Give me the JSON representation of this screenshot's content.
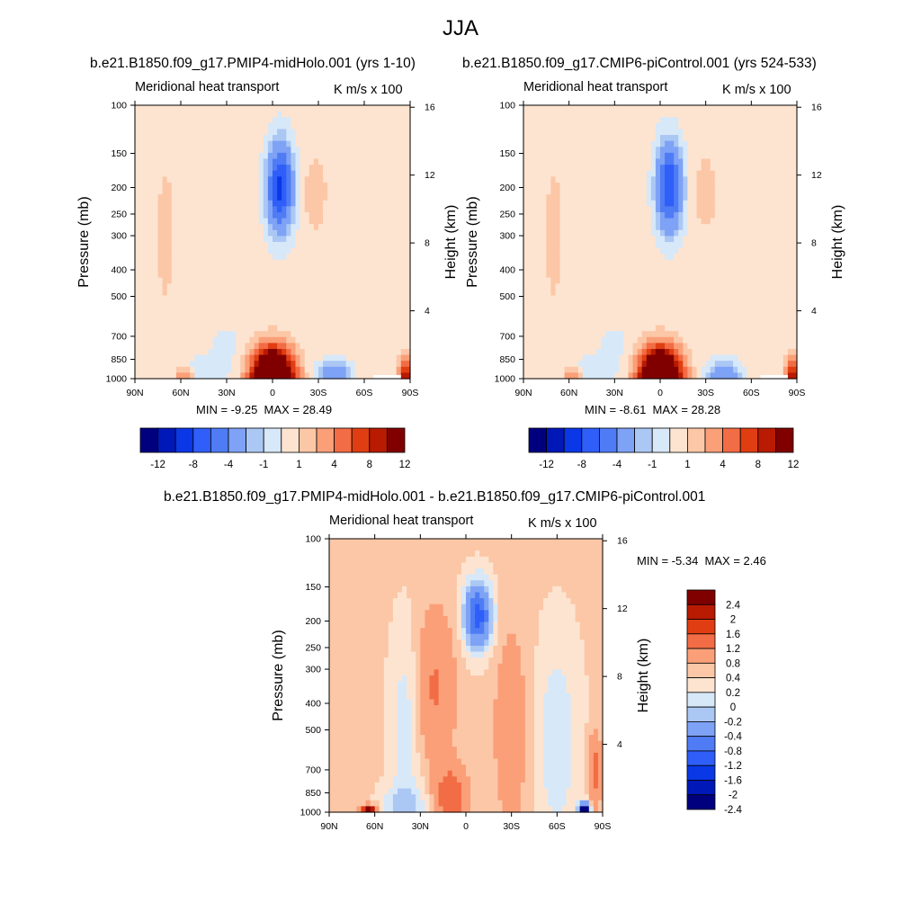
{
  "page": {
    "title": "JJA"
  },
  "panels": [
    {
      "case_title": "b.e21.B1850.f09_g17.PMIP4-midHolo.001 (yrs 1-10)",
      "left_label": "Meridional heat transport",
      "right_label": "K m/s x 100",
      "min_label": "MIN =",
      "min_value": "-9.25",
      "max_label": "MAX =",
      "max_value": "28.49"
    },
    {
      "case_title": "b.e21.B1850.f09_g17.CMIP6-piControl.001 (yrs 524-533)",
      "left_label": "Meridional heat transport",
      "right_label": "K m/s x 100",
      "min_label": "MIN =",
      "min_value": "-8.61",
      "max_label": "MAX =",
      "max_value": "28.28"
    },
    {
      "case_title": "b.e21.B1850.f09_g17.PMIP4-midHolo.001 - b.e21.B1850.f09_g17.CMIP6-piControl.001",
      "left_label": "Meridional heat transport",
      "right_label": "K m/s x 100",
      "min_label": "MIN =",
      "min_value": "-5.34",
      "max_label": "MAX =",
      "max_value": "2.46"
    }
  ],
  "chart_data": [
    {
      "type": "heatmap",
      "title": "Meridional heat transport",
      "units": "K m/s x 100",
      "xlabel": "",
      "ylabel": "Pressure (mb)",
      "y2label": "Height (km)",
      "x_ticks": [
        "90N",
        "60N",
        "30N",
        "0",
        "30S",
        "60S",
        "90S"
      ],
      "x_tick_values": [
        90,
        60,
        30,
        0,
        -30,
        -60,
        -90
      ],
      "y_ticks": [
        100,
        150,
        200,
        250,
        300,
        400,
        500,
        700,
        850,
        1000
      ],
      "y2_ticks": [
        16,
        12,
        8,
        4
      ],
      "y_scale": "log",
      "ylim": [
        1000,
        100
      ],
      "min": -9.25,
      "max": 28.49,
      "colorbar": {
        "orientation": "horizontal",
        "levels": [
          -12,
          -10,
          -8,
          -6,
          -4,
          -2,
          -1,
          0,
          1,
          2,
          4,
          6,
          8,
          10,
          12
        ],
        "labels": [
          "-12",
          "-8",
          "-4",
          "-1",
          "1",
          "4",
          "8",
          "12"
        ]
      },
      "features": [
        {
          "lat": 0,
          "p": 960,
          "value": 26,
          "desc": "strong positive near-surface maximum at equator"
        },
        {
          "lat": -5,
          "p": 200,
          "value": -9.25,
          "desc": "upper-level negative minimum"
        },
        {
          "lat": -25,
          "p": 200,
          "value": 1,
          "desc": "weak upper-level positive"
        },
        {
          "lat": -40,
          "p": 950,
          "value": -4,
          "desc": "near-surface negative southern subtropics"
        },
        {
          "lat": -85,
          "p": 900,
          "value": 8,
          "desc": "near-surface positive high southern latitudes"
        }
      ]
    },
    {
      "type": "heatmap",
      "title": "Meridional heat transport",
      "units": "K m/s x 100",
      "xlabel": "",
      "ylabel": "Pressure (mb)",
      "y2label": "Height (km)",
      "x_ticks": [
        "90N",
        "60N",
        "30N",
        "0",
        "30S",
        "60S",
        "90S"
      ],
      "x_tick_values": [
        90,
        60,
        30,
        0,
        -30,
        -60,
        -90
      ],
      "y_ticks": [
        100,
        150,
        200,
        250,
        300,
        400,
        500,
        700,
        850,
        1000
      ],
      "y2_ticks": [
        16,
        12,
        8,
        4
      ],
      "y_scale": "log",
      "ylim": [
        1000,
        100
      ],
      "min": -8.61,
      "max": 28.28,
      "colorbar": {
        "orientation": "horizontal",
        "levels": [
          -12,
          -10,
          -8,
          -6,
          -4,
          -2,
          -1,
          0,
          1,
          2,
          4,
          6,
          8,
          10,
          12
        ],
        "labels": [
          "-12",
          "-8",
          "-4",
          "-1",
          "1",
          "4",
          "8",
          "12"
        ]
      },
      "features": [
        {
          "lat": 0,
          "p": 960,
          "value": 26,
          "desc": "strong positive near-surface maximum at equator"
        },
        {
          "lat": -2,
          "p": 200,
          "value": -8.61,
          "desc": "upper-level negative minimum"
        },
        {
          "lat": -30,
          "p": 200,
          "value": 1,
          "desc": "weak upper-level positive"
        },
        {
          "lat": -45,
          "p": 950,
          "value": -4,
          "desc": "near-surface negative southern subtropics"
        },
        {
          "lat": -85,
          "p": 900,
          "value": 8,
          "desc": "near-surface positive high southern latitudes"
        }
      ]
    },
    {
      "type": "heatmap",
      "title": "Meridional heat transport",
      "units": "K m/s x 100",
      "xlabel": "",
      "ylabel": "Pressure (mb)",
      "y2label": "Height (km)",
      "x_ticks": [
        "90N",
        "60N",
        "30N",
        "0",
        "30S",
        "60S",
        "90S"
      ],
      "x_tick_values": [
        90,
        60,
        30,
        0,
        -30,
        -60,
        -90
      ],
      "y_ticks": [
        100,
        150,
        200,
        250,
        300,
        400,
        500,
        700,
        850,
        1000
      ],
      "y2_ticks": [
        16,
        12,
        8,
        4
      ],
      "y_scale": "log",
      "ylim": [
        1000,
        100
      ],
      "min": -5.34,
      "max": 2.46,
      "colorbar": {
        "orientation": "vertical",
        "levels": [
          -2.4,
          -2,
          -1.6,
          -1.2,
          -0.8,
          -0.4,
          -0.2,
          0,
          0.2,
          0.4,
          0.8,
          1.2,
          1.6,
          2,
          2.4
        ],
        "labels": [
          "2.4",
          "2",
          "1.6",
          "1.2",
          "0.8",
          "0.4",
          "0.2",
          "0",
          "-0.2",
          "-0.4",
          "-0.8",
          "-1.2",
          "-1.6",
          "-2",
          "-2.4"
        ]
      },
      "features": [
        {
          "lat": -5,
          "p": 180,
          "value": -1.4,
          "desc": "upper-level negative near equator"
        },
        {
          "lat": 65,
          "p": 990,
          "value": 2.46,
          "desc": "near-surface positive at 60N"
        },
        {
          "lat": 10,
          "p": 900,
          "value": 0.8,
          "desc": "lower-tropospheric positive near 10N"
        },
        {
          "lat": -75,
          "p": 975,
          "value": -5.34,
          "desc": "near-surface negative southern high latitudes"
        }
      ]
    }
  ],
  "colors": {
    "scale": [
      "#00007f",
      "#0018b8",
      "#0a38e6",
      "#2f5ef8",
      "#4f7cf5",
      "#7ea2f5",
      "#abc7f4",
      "#d7e8f8",
      "#fde4d0",
      "#fcc7a7",
      "#fa9f78",
      "#f26c45",
      "#e03e12",
      "#b81a02",
      "#800000"
    ]
  }
}
